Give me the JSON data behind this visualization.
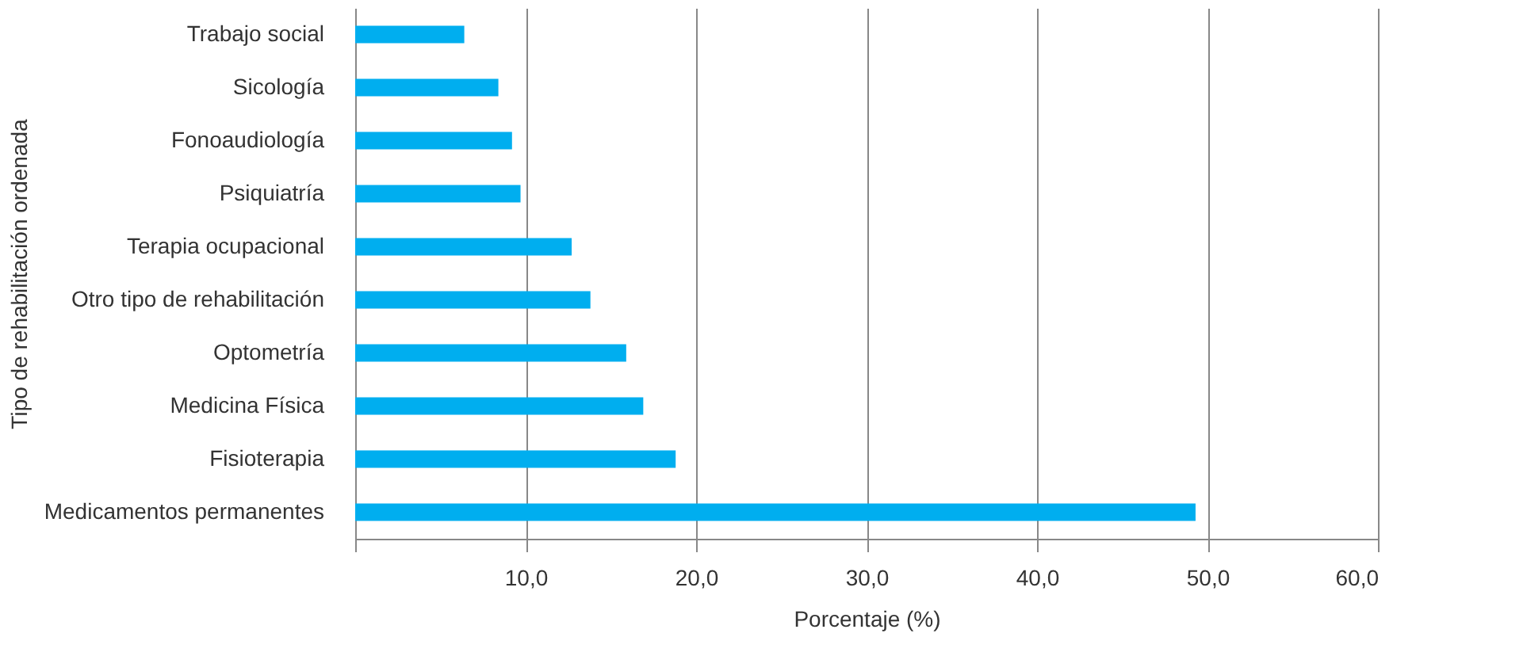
{
  "chart_data": {
    "type": "bar",
    "orientation": "horizontal",
    "xlabel": "Porcentaje (%)",
    "ylabel": "Tipo de rehabilitación ordenada",
    "categories": [
      "Trabajo social",
      "Sicología",
      "Fonoaudiología",
      "Psiquiatría",
      "Terapia ocupacional",
      "Otro tipo de rehabilitación",
      "Optometría",
      "Medicina Física",
      "Fisioterapia",
      "Medicamentos permanentes"
    ],
    "values": [
      6.4,
      8.4,
      9.2,
      9.7,
      12.7,
      13.8,
      15.9,
      16.9,
      18.8,
      49.3
    ],
    "color": "#00aeef",
    "xlim": [
      0,
      60
    ],
    "xticks": [
      {
        "value": 0,
        "label": null
      },
      {
        "value": 10,
        "label": "10,0"
      },
      {
        "value": 20,
        "label": "20,0"
      },
      {
        "value": 30,
        "label": "30,0"
      },
      {
        "value": 40,
        "label": "40,0"
      },
      {
        "value": 50,
        "label": "50,0"
      },
      {
        "value": 60,
        "label": "60,0"
      }
    ],
    "grid": "x"
  }
}
